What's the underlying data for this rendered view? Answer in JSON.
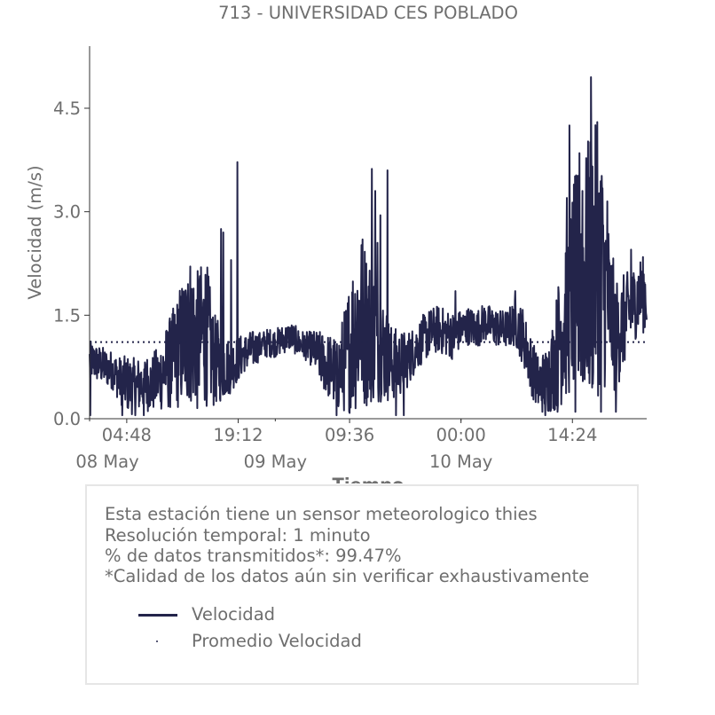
{
  "chart_data": {
    "type": "line",
    "title": "713 - UNIVERSIDAD CES POBLADO",
    "xlabel": "Tiempo",
    "ylabel": "Velocidad (m/s)",
    "ylim": [
      0.0,
      5.4
    ],
    "yticks": [
      "0.0",
      "1.5",
      "3.0",
      "4.5"
    ],
    "xticks": [
      "04:48",
      "19:12",
      "09:36",
      "00:00",
      "14:24"
    ],
    "date_labels": [
      "08 May",
      "09 May",
      "10 May"
    ],
    "grid": false,
    "colors": {
      "series": "#23244a",
      "mean": "#23244a",
      "text": "#6e6e6e"
    },
    "series": [
      {
        "name": "Velocidad",
        "style": "line",
        "x_hours": [
          0,
          1,
          2,
          3,
          4,
          5,
          6,
          7,
          8,
          9,
          10,
          11,
          12,
          13,
          14,
          15,
          16,
          17,
          18,
          19,
          20,
          21,
          22,
          23,
          24,
          25,
          26,
          27,
          28,
          29,
          30,
          31,
          32,
          33,
          34,
          35,
          36,
          37,
          38,
          39,
          40,
          41,
          42,
          43,
          44,
          45,
          46,
          47,
          48,
          49,
          50,
          51,
          52,
          53,
          54,
          55,
          56,
          57,
          58,
          59,
          60,
          61,
          62,
          63,
          64,
          65,
          66,
          67,
          68,
          69,
          70,
          71
        ],
        "mean_values": [
          0.85,
          0.8,
          0.75,
          0.7,
          0.55,
          0.5,
          0.45,
          0.55,
          0.5,
          0.6,
          0.75,
          0.9,
          1.1,
          1.3,
          1.1,
          1.3,
          0.85,
          0.8,
          0.75,
          0.85,
          0.95,
          1.0,
          1.05,
          1.1,
          1.1,
          1.15,
          1.2,
          1.1,
          1.05,
          1.0,
          0.85,
          0.75,
          0.65,
          0.85,
          1.2,
          1.5,
          1.3,
          1.2,
          1.0,
          0.8,
          0.8,
          0.85,
          1.0,
          1.15,
          1.25,
          1.3,
          1.25,
          1.2,
          1.3,
          1.35,
          1.3,
          1.4,
          1.35,
          1.3,
          1.3,
          1.4,
          1.2,
          0.8,
          0.5,
          0.55,
          0.8,
          1.3,
          1.7,
          2.0,
          2.0,
          2.3,
          2.2,
          1.7,
          1.2,
          1.4,
          1.6,
          1.8
        ],
        "amplitude": [
          0.2,
          0.2,
          0.2,
          0.2,
          0.25,
          0.3,
          0.3,
          0.3,
          0.3,
          0.35,
          0.45,
          0.55,
          0.7,
          0.8,
          0.75,
          0.8,
          0.5,
          0.4,
          0.3,
          0.25,
          0.2,
          0.2,
          0.15,
          0.15,
          0.15,
          0.15,
          0.15,
          0.15,
          0.15,
          0.2,
          0.3,
          0.35,
          0.4,
          0.55,
          0.8,
          1.0,
          0.8,
          0.7,
          0.55,
          0.4,
          0.35,
          0.3,
          0.25,
          0.25,
          0.25,
          0.25,
          0.25,
          0.25,
          0.2,
          0.2,
          0.2,
          0.2,
          0.2,
          0.2,
          0.2,
          0.25,
          0.3,
          0.3,
          0.3,
          0.35,
          0.5,
          0.8,
          1.0,
          1.2,
          1.3,
          1.5,
          1.3,
          0.9,
          0.6,
          0.5,
          0.4,
          0.4
        ],
        "spikes": [
          [
            17.0,
            2.75
          ],
          [
            17.3,
            2.7
          ],
          [
            18.3,
            2.3
          ],
          [
            19.1,
            3.72
          ],
          [
            36.5,
            3.62
          ],
          [
            36.9,
            3.3
          ],
          [
            38.5,
            3.6
          ],
          [
            37.6,
            2.95
          ],
          [
            37.2,
            2.55
          ],
          [
            62.0,
            4.25
          ],
          [
            63.3,
            3.85
          ],
          [
            64.8,
            4.95
          ],
          [
            65.6,
            4.3
          ],
          [
            66.2,
            3.52
          ],
          [
            66.9,
            3.15
          ],
          [
            63.7,
            3.3
          ],
          [
            61.7,
            3.2
          ],
          [
            47.3,
            1.85
          ],
          [
            55.0,
            1.85
          ],
          [
            70.0,
            2.45
          ],
          [
            12.7,
            1.95
          ],
          [
            14.2,
            2.0
          ],
          [
            0.1,
            0.05
          ],
          [
            4.2,
            0.05
          ],
          [
            7.0,
            0.05
          ],
          [
            31.9,
            0.05
          ],
          [
            39.6,
            0.05
          ],
          [
            40.6,
            0.05
          ],
          [
            58.9,
            0.05
          ],
          [
            60.5,
            0.1
          ],
          [
            62.8,
            0.1
          ],
          [
            66.1,
            0.1
          ],
          [
            68.0,
            0.1
          ]
        ],
        "x_range_hours": [
          0,
          72
        ]
      },
      {
        "name": "Promedio Velocidad",
        "style": "dotted",
        "value": 1.11
      }
    ]
  },
  "info": {
    "lines": [
      "Esta estación tiene un sensor meteorologico thies",
      "Resolución temporal: 1 minuto",
      "% de datos transmitidos*: 99.47%",
      "*Calidad de los datos aún sin verificar exhaustivamente"
    ]
  },
  "legend": {
    "items": [
      {
        "label": "Velocidad",
        "kind": "line"
      },
      {
        "label": "Promedio Velocidad",
        "kind": "dot"
      }
    ]
  }
}
